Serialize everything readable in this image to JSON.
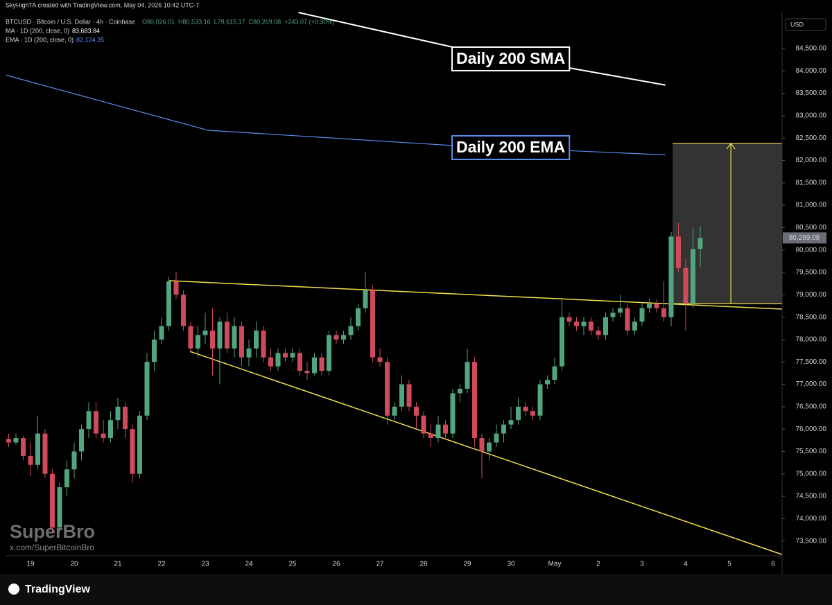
{
  "chart_data": {
    "type": "candlestick",
    "watermark_header": "SkyHighTA created with TradingView.com, May 04, 2026 10:42 UTC-7",
    "symbol": "BTCUSD · Bitcoin / U.S. Dollar · 4h · Coinbase",
    "ohlc_legend": [
      "O80,026.01",
      "H80,533.16",
      "L79,615.17",
      "C80,269.08",
      "+243.07 (+0.30%)"
    ],
    "indicators": [
      {
        "name": "MA · 1D (200, close, 0)",
        "value_label": "83,683.84",
        "color": "#ffffff",
        "x": [
          39.8,
          61,
          90.2
        ],
        "values": [
          85305,
          84531,
          83684
        ]
      },
      {
        "name": "EMA · 1D (200, close, 0)",
        "value_label": "82,124.35",
        "color": "#5b8def",
        "x": [
          -0.4,
          27.4,
          61,
          90.2
        ],
        "values": [
          83906,
          82673,
          82333,
          82124
        ]
      }
    ],
    "annotations": [
      {
        "text": "Daily 200 SMA",
        "color": "#ffffff"
      },
      {
        "text": "Daily 200 EMA",
        "color": "#5b8def"
      }
    ],
    "trendlines": [
      {
        "color": "#f2e14c",
        "x": [
          22,
          106.2
        ],
        "values": [
          79314,
          78680
        ]
      },
      {
        "color": "#f2e14c",
        "x": [
          24.9,
          106.2
        ],
        "values": [
          77735,
          73200
        ]
      }
    ],
    "projection": {
      "x": [
        91.2,
        106.2
      ],
      "arrow_x": 99.2,
      "top": 82380,
      "bottom": 78800,
      "color": "#f2e14c"
    },
    "currency": "USD",
    "last_price": {
      "value": 80269.08,
      "label": "80,269.08"
    },
    "brand": "SuperBro",
    "brand_url": "x.com/SuperBitcoinBro",
    "footer": "TradingView",
    "up_color": "#52a57f",
    "down_color": "#cf4b5c",
    "ylim": [
      73200,
      85305
    ],
    "yticks": [
      {
        "value": 73500,
        "label": "73,500.00"
      },
      {
        "value": 74000,
        "label": "74,000.00"
      },
      {
        "value": 74500,
        "label": "74,500.00"
      },
      {
        "value": 75000,
        "label": "75,000.00"
      },
      {
        "value": 75500,
        "label": "75,500.00"
      },
      {
        "value": 76000,
        "label": "76,000.00"
      },
      {
        "value": 76500,
        "label": "76,500.00"
      },
      {
        "value": 77000,
        "label": "77,000.00"
      },
      {
        "value": 77500,
        "label": "77,500.00"
      },
      {
        "value": 78000,
        "label": "78,000.00"
      },
      {
        "value": 78500,
        "label": "78,500.00"
      },
      {
        "value": 79000,
        "label": "79,000.00"
      },
      {
        "value": 79500,
        "label": "79,500.00"
      },
      {
        "value": 80000,
        "label": "80,000.00"
      },
      {
        "value": 80500,
        "label": "80,500.00"
      },
      {
        "value": 81000,
        "label": "81,000.00"
      },
      {
        "value": 81500,
        "label": "81,500.00"
      },
      {
        "value": 82000,
        "label": "82,000.00"
      },
      {
        "value": 82500,
        "label": "82,500.00"
      },
      {
        "value": 83000,
        "label": "83,000.00"
      },
      {
        "value": 83500,
        "label": "83,500.00"
      },
      {
        "value": 84000,
        "label": "84,000.00"
      },
      {
        "value": 84500,
        "label": "84,500.00"
      }
    ],
    "categories": [
      null,
      null,
      null,
      "19",
      null,
      null,
      null,
      null,
      null,
      "20",
      null,
      null,
      null,
      null,
      null,
      "21",
      null,
      null,
      null,
      null,
      null,
      "22",
      null,
      null,
      null,
      null,
      null,
      "23",
      null,
      null,
      null,
      null,
      null,
      "24",
      null,
      null,
      null,
      null,
      null,
      "25",
      null,
      null,
      null,
      null,
      null,
      "26",
      null,
      null,
      null,
      null,
      null,
      "27",
      null,
      null,
      null,
      null,
      null,
      "28",
      null,
      null,
      null,
      null,
      null,
      "29",
      null,
      null,
      null,
      null,
      null,
      "30",
      null,
      null,
      null,
      null,
      null,
      "May",
      null,
      null,
      null,
      null,
      null,
      "2",
      null,
      null,
      null,
      null,
      null,
      "3",
      null,
      null,
      null,
      null,
      null,
      "4",
      null,
      null,
      null,
      null,
      null,
      "5",
      null,
      null,
      null,
      null,
      null,
      "6"
    ],
    "ohlc": [
      [
        75780,
        75900,
        75600,
        75700
      ],
      [
        75700,
        75900,
        75650,
        75800
      ],
      [
        75800,
        75850,
        75300,
        75400
      ],
      [
        75400,
        75700,
        74950,
        75200
      ],
      [
        75200,
        76300,
        75100,
        75900
      ],
      [
        75900,
        76000,
        74900,
        75000
      ],
      [
        75000,
        75100,
        73700,
        73800
      ],
      [
        73800,
        74800,
        73700,
        74700
      ],
      [
        74700,
        75300,
        74500,
        75100
      ],
      [
        75100,
        75700,
        74900,
        75500
      ],
      [
        75500,
        76100,
        75300,
        76000
      ],
      [
        76000,
        76600,
        75800,
        76400
      ],
      [
        76400,
        76600,
        75800,
        75900
      ],
      [
        75900,
        76200,
        75700,
        75800
      ],
      [
        75800,
        76400,
        75700,
        76200
      ],
      [
        76200,
        76700,
        76000,
        76500
      ],
      [
        76500,
        76600,
        75800,
        76000
      ],
      [
        76000,
        76100,
        74800,
        75000
      ],
      [
        75000,
        76400,
        74900,
        76300
      ],
      [
        76300,
        77700,
        76200,
        77500
      ],
      [
        77500,
        78200,
        77300,
        78000
      ],
      [
        78000,
        78500,
        77900,
        78300
      ],
      [
        78300,
        79400,
        78200,
        79300
      ],
      [
        79300,
        79500,
        78900,
        79000
      ],
      [
        79000,
        79100,
        78200,
        78300
      ],
      [
        78300,
        78400,
        77700,
        77800
      ],
      [
        77800,
        78300,
        77600,
        78100
      ],
      [
        78100,
        78600,
        77900,
        78200
      ],
      [
        78200,
        78700,
        77200,
        77800
      ],
      [
        77800,
        78500,
        77000,
        78400
      ],
      [
        78400,
        78600,
        77700,
        77800
      ],
      [
        77800,
        78500,
        77600,
        78300
      ],
      [
        78300,
        78400,
        77400,
        77600
      ],
      [
        77600,
        78000,
        77400,
        77800
      ],
      [
        77800,
        78400,
        77600,
        78200
      ],
      [
        78200,
        78300,
        77500,
        77600
      ],
      [
        77600,
        77800,
        77300,
        77400
      ],
      [
        77400,
        77800,
        77300,
        77700
      ],
      [
        77700,
        77800,
        77500,
        77600
      ],
      [
        77600,
        77800,
        77500,
        77700
      ],
      [
        77700,
        77800,
        77200,
        77300
      ],
      [
        77300,
        77500,
        77100,
        77250
      ],
      [
        77250,
        77700,
        77200,
        77600
      ],
      [
        77600,
        77700,
        77200,
        77300
      ],
      [
        77300,
        78200,
        77200,
        78100
      ],
      [
        78100,
        78200,
        77900,
        78000
      ],
      [
        78000,
        78200,
        77900,
        78100
      ],
      [
        78100,
        78500,
        78000,
        78300
      ],
      [
        78300,
        78800,
        78200,
        78700
      ],
      [
        78700,
        79500,
        78600,
        79100
      ],
      [
        79100,
        79200,
        77500,
        77600
      ],
      [
        77600,
        77800,
        77400,
        77500
      ],
      [
        77500,
        77600,
        76100,
        76300
      ],
      [
        76300,
        76600,
        76200,
        76500
      ],
      [
        76500,
        77200,
        76400,
        77000
      ],
      [
        77000,
        77100,
        76400,
        76500
      ],
      [
        76500,
        76600,
        76000,
        76300
      ],
      [
        76300,
        76400,
        75800,
        75900
      ],
      [
        75900,
        76100,
        75600,
        75800
      ],
      [
        75800,
        76300,
        75700,
        76100
      ],
      [
        76100,
        76200,
        75800,
        75900
      ],
      [
        75900,
        76900,
        75800,
        76800
      ],
      [
        76800,
        77000,
        76600,
        76900
      ],
      [
        76900,
        77800,
        76800,
        77500
      ],
      [
        77500,
        77600,
        75600,
        75800
      ],
      [
        75800,
        75900,
        74900,
        75500
      ],
      [
        75500,
        75800,
        75300,
        75700
      ],
      [
        75700,
        76100,
        75600,
        75900
      ],
      [
        75900,
        76200,
        75700,
        76100
      ],
      [
        76100,
        76500,
        76000,
        76200
      ],
      [
        76200,
        76700,
        76100,
        76500
      ],
      [
        76500,
        76600,
        76300,
        76400
      ],
      [
        76400,
        76500,
        76200,
        76300
      ],
      [
        76300,
        77100,
        76200,
        77000
      ],
      [
        77000,
        77200,
        76900,
        77100
      ],
      [
        77100,
        77600,
        77000,
        77400
      ],
      [
        77400,
        78900,
        77300,
        78500
      ],
      [
        78500,
        78600,
        78300,
        78400
      ],
      [
        78400,
        78500,
        78200,
        78300
      ],
      [
        78300,
        78500,
        78100,
        78400
      ],
      [
        78400,
        78500,
        78100,
        78200
      ],
      [
        78200,
        78300,
        78000,
        78100
      ],
      [
        78100,
        78600,
        78000,
        78500
      ],
      [
        78500,
        78700,
        78400,
        78600
      ],
      [
        78600,
        79000,
        78500,
        78700
      ],
      [
        78700,
        78800,
        78100,
        78200
      ],
      [
        78200,
        78500,
        78100,
        78400
      ],
      [
        78400,
        78800,
        78300,
        78700
      ],
      [
        78700,
        78900,
        78600,
        78800
      ],
      [
        78800,
        78900,
        78600,
        78700
      ],
      [
        78700,
        79300,
        78400,
        78500
      ],
      [
        78500,
        80400,
        78300,
        80300
      ],
      [
        80300,
        80600,
        79500,
        79600
      ],
      [
        79600,
        79800,
        78200,
        78800
      ],
      [
        78800,
        80500,
        78700,
        80026.01
      ],
      [
        80026.01,
        80533.16,
        79615.17,
        80269.08
      ],
      null,
      null,
      null,
      null,
      null,
      null,
      null,
      null,
      null,
      null
    ]
  }
}
